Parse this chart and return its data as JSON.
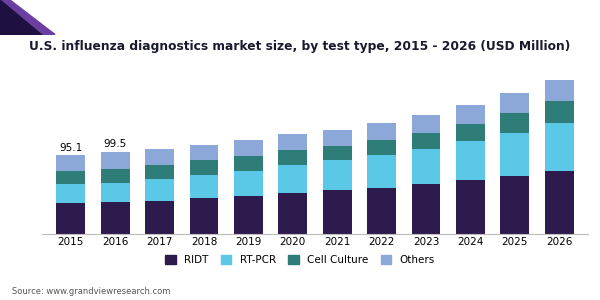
{
  "title": "U.S. influenza diagnostics market size, by test type, 2015 - 2026 (USD Million)",
  "source": "Source: www.grandviewresearch.com",
  "years": [
    2015,
    2016,
    2017,
    2018,
    2019,
    2020,
    2021,
    2022,
    2023,
    2024,
    2025,
    2026
  ],
  "annotations": [
    [
      0,
      "95.1"
    ],
    [
      1,
      "99.5"
    ]
  ],
  "segments": {
    "RIDT": [
      38.0,
      38.5,
      40.0,
      43.0,
      46.0,
      50.0,
      53.0,
      56.0,
      60.0,
      65.0,
      70.0,
      76.0
    ],
    "RT-PCR": [
      22.0,
      23.0,
      26.0,
      28.0,
      30.0,
      33.0,
      36.0,
      39.0,
      43.0,
      47.0,
      52.0,
      58.0
    ],
    "Cell Culture": [
      16.0,
      17.0,
      17.0,
      18.0,
      18.0,
      18.0,
      17.0,
      18.0,
      19.0,
      21.0,
      24.0,
      27.0
    ],
    "Others": [
      19.1,
      21.0,
      19.0,
      19.0,
      19.0,
      20.0,
      20.0,
      21.0,
      22.0,
      23.0,
      24.0,
      25.0
    ]
  },
  "colors": {
    "RIDT": "#2d1b4e",
    "RT-PCR": "#5bc8e8",
    "Cell Culture": "#2e7d78",
    "Others": "#8ca8d8"
  },
  "legend_order": [
    "RIDT",
    "RT-PCR",
    "Cell Culture",
    "Others"
  ],
  "header_triangle_dark": "#1e1040",
  "header_triangle_mid": "#6b3fa0",
  "header_line_color": "#7b52ab",
  "background_color": "#ffffff",
  "ylim": [
    0,
    210
  ],
  "bar_width": 0.65,
  "title_fontsize": 8.8,
  "tick_fontsize": 7.5,
  "legend_fontsize": 7.5,
  "annot_fontsize": 7.5,
  "source_fontsize": 6.0
}
